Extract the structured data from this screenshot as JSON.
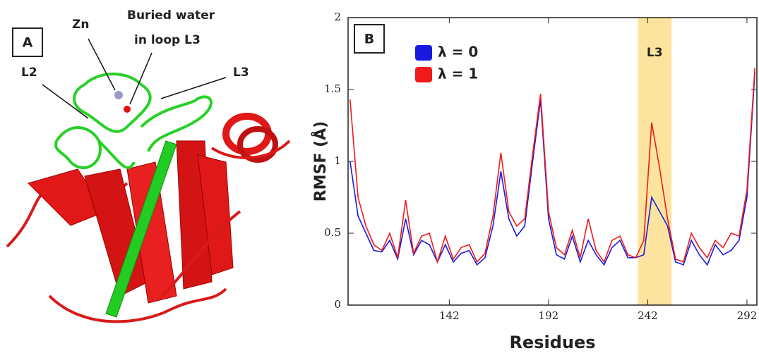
{
  "panel_a": {
    "label": "A",
    "annotations": {
      "zn": "Zn",
      "water_line1": "Buried water",
      "water_line2": "in loop L3",
      "l2": "L2",
      "l3": "L3"
    }
  },
  "chart_data": {
    "type": "line",
    "panel_label": "B",
    "xlabel": "Residues",
    "ylabel": "RMSF (Å)",
    "x": [
      92,
      96,
      100,
      104,
      108,
      112,
      116,
      120,
      124,
      128,
      132,
      136,
      140,
      144,
      148,
      152,
      156,
      160,
      164,
      168,
      172,
      176,
      180,
      184,
      188,
      192,
      196,
      200,
      204,
      208,
      212,
      216,
      220,
      224,
      228,
      232,
      236,
      240,
      244,
      248,
      252,
      256,
      260,
      264,
      268,
      272,
      276,
      280,
      284,
      288,
      292,
      296
    ],
    "series": [
      {
        "name": "λ = 0",
        "color": "#1a1adf",
        "values": [
          1.0,
          0.62,
          0.5,
          0.38,
          0.37,
          0.45,
          0.32,
          0.6,
          0.35,
          0.45,
          0.42,
          0.3,
          0.42,
          0.3,
          0.36,
          0.38,
          0.28,
          0.33,
          0.55,
          0.93,
          0.6,
          0.48,
          0.55,
          1.0,
          1.43,
          0.6,
          0.35,
          0.32,
          0.48,
          0.3,
          0.45,
          0.35,
          0.28,
          0.4,
          0.45,
          0.33,
          0.33,
          0.35,
          0.75,
          0.65,
          0.55,
          0.3,
          0.28,
          0.45,
          0.35,
          0.28,
          0.42,
          0.35,
          0.38,
          0.45,
          0.75,
          1.62
        ]
      },
      {
        "name": "λ = 1",
        "color": "#f01a1a",
        "values": [
          1.43,
          0.75,
          0.55,
          0.42,
          0.38,
          0.5,
          0.33,
          0.73,
          0.36,
          0.48,
          0.5,
          0.3,
          0.48,
          0.32,
          0.4,
          0.42,
          0.3,
          0.36,
          0.62,
          1.06,
          0.65,
          0.55,
          0.6,
          1.05,
          1.47,
          0.65,
          0.4,
          0.35,
          0.52,
          0.33,
          0.6,
          0.38,
          0.3,
          0.45,
          0.48,
          0.35,
          0.33,
          0.45,
          1.27,
          0.95,
          0.6,
          0.32,
          0.3,
          0.5,
          0.4,
          0.33,
          0.45,
          0.4,
          0.5,
          0.48,
          0.8,
          1.65
        ]
      }
    ],
    "xlim": [
      91,
      297
    ],
    "xticks": [
      142,
      192,
      242,
      292
    ],
    "ylim": [
      0,
      2
    ],
    "yticks": [
      0,
      0.5,
      1,
      1.5,
      2
    ],
    "highlight": {
      "range": [
        237,
        254
      ],
      "label": "L3",
      "color": "#fde49e"
    },
    "legend": "upper left",
    "grid": false
  }
}
